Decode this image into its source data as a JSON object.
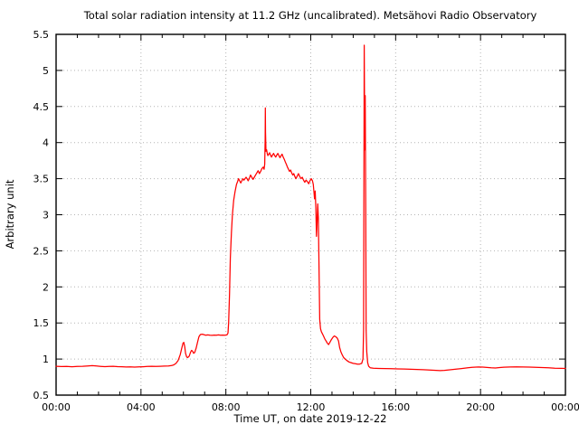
{
  "chart_data": {
    "type": "line",
    "title": "Total solar radiation intensity at 11.2 GHz (uncalibrated). Metsähovi Radio Observatory",
    "xlabel": "Time UT, on date 2019-12-22",
    "ylabel": "Arbitrary unit",
    "xlim": [
      0,
      24
    ],
    "ylim": [
      0.5,
      5.5
    ],
    "grid": "dotted at major ticks",
    "legend": "none",
    "background": "#ffffff",
    "line_color": "#ff0000",
    "x_ticks": [
      {
        "pos": 0,
        "label": "00:00"
      },
      {
        "pos": 4,
        "label": "04:00"
      },
      {
        "pos": 8,
        "label": "08:00"
      },
      {
        "pos": 12,
        "label": "12:00"
      },
      {
        "pos": 16,
        "label": "16:00"
      },
      {
        "pos": 20,
        "label": "20:00"
      },
      {
        "pos": 24,
        "label": "00:00"
      }
    ],
    "x_minor_step": 1,
    "y_ticks": [
      {
        "pos": 0.5,
        "label": "0.5"
      },
      {
        "pos": 1,
        "label": "1"
      },
      {
        "pos": 1.5,
        "label": "1.5"
      },
      {
        "pos": 2,
        "label": "2"
      },
      {
        "pos": 2.5,
        "label": "2.5"
      },
      {
        "pos": 3,
        "label": "3"
      },
      {
        "pos": 3.5,
        "label": "3.5"
      },
      {
        "pos": 4,
        "label": "4"
      },
      {
        "pos": 4.5,
        "label": "4.5"
      },
      {
        "pos": 5,
        "label": "5"
      },
      {
        "pos": 5.5,
        "label": "5.5"
      }
    ],
    "series": [
      {
        "name": "total solar radiation intensity (arbitrary units) vs time UT",
        "points": [
          [
            0.0,
            0.9
          ],
          [
            0.25,
            0.896
          ],
          [
            0.5,
            0.898
          ],
          [
            0.75,
            0.893
          ],
          [
            1.0,
            0.897
          ],
          [
            1.25,
            0.9
          ],
          [
            1.5,
            0.905
          ],
          [
            1.7,
            0.908
          ],
          [
            1.9,
            0.903
          ],
          [
            2.1,
            0.898
          ],
          [
            2.3,
            0.895
          ],
          [
            2.5,
            0.898
          ],
          [
            2.7,
            0.9
          ],
          [
            2.9,
            0.895
          ],
          [
            3.1,
            0.893
          ],
          [
            3.3,
            0.89
          ],
          [
            3.5,
            0.892
          ],
          [
            3.7,
            0.889
          ],
          [
            3.9,
            0.891
          ],
          [
            4.1,
            0.893
          ],
          [
            4.3,
            0.897
          ],
          [
            4.5,
            0.9
          ],
          [
            4.7,
            0.898
          ],
          [
            4.9,
            0.9
          ],
          [
            5.1,
            0.902
          ],
          [
            5.3,
            0.905
          ],
          [
            5.45,
            0.91
          ],
          [
            5.55,
            0.92
          ],
          [
            5.65,
            0.94
          ],
          [
            5.75,
            0.98
          ],
          [
            5.85,
            1.06
          ],
          [
            5.92,
            1.15
          ],
          [
            5.98,
            1.22
          ],
          [
            6.02,
            1.23
          ],
          [
            6.06,
            1.17
          ],
          [
            6.1,
            1.08
          ],
          [
            6.15,
            1.03
          ],
          [
            6.2,
            1.02
          ],
          [
            6.27,
            1.04
          ],
          [
            6.33,
            1.09
          ],
          [
            6.38,
            1.12
          ],
          [
            6.43,
            1.11
          ],
          [
            6.48,
            1.08
          ],
          [
            6.53,
            1.09
          ],
          [
            6.6,
            1.15
          ],
          [
            6.67,
            1.24
          ],
          [
            6.73,
            1.31
          ],
          [
            6.8,
            1.34
          ],
          [
            6.88,
            1.345
          ],
          [
            6.95,
            1.34
          ],
          [
            7.05,
            1.33
          ],
          [
            7.15,
            1.335
          ],
          [
            7.25,
            1.33
          ],
          [
            7.35,
            1.328
          ],
          [
            7.45,
            1.332
          ],
          [
            7.55,
            1.33
          ],
          [
            7.65,
            1.335
          ],
          [
            7.75,
            1.33
          ],
          [
            7.85,
            1.332
          ],
          [
            7.95,
            1.33
          ],
          [
            8.05,
            1.335
          ],
          [
            8.1,
            1.36
          ],
          [
            8.13,
            1.5
          ],
          [
            8.17,
            1.9
          ],
          [
            8.21,
            2.4
          ],
          [
            8.26,
            2.75
          ],
          [
            8.31,
            3.0
          ],
          [
            8.37,
            3.2
          ],
          [
            8.43,
            3.32
          ],
          [
            8.5,
            3.42
          ],
          [
            8.55,
            3.46
          ],
          [
            8.6,
            3.5
          ],
          [
            8.65,
            3.47
          ],
          [
            8.7,
            3.44
          ],
          [
            8.75,
            3.47
          ],
          [
            8.8,
            3.5
          ],
          [
            8.85,
            3.48
          ],
          [
            8.9,
            3.5
          ],
          [
            8.95,
            3.52
          ],
          [
            9.0,
            3.5
          ],
          [
            9.05,
            3.47
          ],
          [
            9.1,
            3.5
          ],
          [
            9.16,
            3.55
          ],
          [
            9.22,
            3.52
          ],
          [
            9.28,
            3.49
          ],
          [
            9.34,
            3.52
          ],
          [
            9.4,
            3.55
          ],
          [
            9.46,
            3.58
          ],
          [
            9.52,
            3.61
          ],
          [
            9.58,
            3.57
          ],
          [
            9.64,
            3.6
          ],
          [
            9.7,
            3.64
          ],
          [
            9.76,
            3.66
          ],
          [
            9.8,
            3.63
          ],
          [
            9.83,
            3.7
          ],
          [
            9.85,
            4.05
          ],
          [
            9.86,
            4.48
          ],
          [
            9.87,
            4.15
          ],
          [
            9.89,
            3.88
          ],
          [
            9.92,
            3.9
          ],
          [
            9.95,
            3.85
          ],
          [
            9.98,
            3.82
          ],
          [
            10.02,
            3.84
          ],
          [
            10.06,
            3.86
          ],
          [
            10.1,
            3.83
          ],
          [
            10.15,
            3.8
          ],
          [
            10.2,
            3.83
          ],
          [
            10.25,
            3.85
          ],
          [
            10.3,
            3.82
          ],
          [
            10.35,
            3.8
          ],
          [
            10.4,
            3.83
          ],
          [
            10.45,
            3.85
          ],
          [
            10.5,
            3.82
          ],
          [
            10.55,
            3.79
          ],
          [
            10.6,
            3.82
          ],
          [
            10.65,
            3.84
          ],
          [
            10.7,
            3.8
          ],
          [
            10.75,
            3.77
          ],
          [
            10.8,
            3.73
          ],
          [
            10.85,
            3.7
          ],
          [
            10.9,
            3.66
          ],
          [
            10.95,
            3.63
          ],
          [
            11.0,
            3.6
          ],
          [
            11.05,
            3.62
          ],
          [
            11.1,
            3.58
          ],
          [
            11.15,
            3.55
          ],
          [
            11.2,
            3.57
          ],
          [
            11.25,
            3.53
          ],
          [
            11.3,
            3.5
          ],
          [
            11.35,
            3.53
          ],
          [
            11.42,
            3.57
          ],
          [
            11.48,
            3.53
          ],
          [
            11.54,
            3.5
          ],
          [
            11.6,
            3.52
          ],
          [
            11.66,
            3.48
          ],
          [
            11.72,
            3.45
          ],
          [
            11.78,
            3.48
          ],
          [
            11.84,
            3.46
          ],
          [
            11.9,
            3.43
          ],
          [
            11.96,
            3.47
          ],
          [
            12.02,
            3.5
          ],
          [
            12.08,
            3.47
          ],
          [
            12.12,
            3.42
          ],
          [
            12.15,
            3.32
          ],
          [
            12.18,
            3.22
          ],
          [
            12.21,
            3.33
          ],
          [
            12.24,
            3.1
          ],
          [
            12.27,
            2.7
          ],
          [
            12.3,
            2.9
          ],
          [
            12.33,
            3.15
          ],
          [
            12.36,
            2.95
          ],
          [
            12.39,
            2.3
          ],
          [
            12.42,
            1.55
          ],
          [
            12.46,
            1.42
          ],
          [
            12.5,
            1.38
          ],
          [
            12.55,
            1.35
          ],
          [
            12.6,
            1.32
          ],
          [
            12.66,
            1.28
          ],
          [
            12.72,
            1.25
          ],
          [
            12.78,
            1.22
          ],
          [
            12.84,
            1.2
          ],
          [
            12.9,
            1.23
          ],
          [
            12.97,
            1.27
          ],
          [
            13.04,
            1.3
          ],
          [
            13.11,
            1.32
          ],
          [
            13.18,
            1.31
          ],
          [
            13.25,
            1.29
          ],
          [
            13.31,
            1.25
          ],
          [
            13.36,
            1.16
          ],
          [
            13.42,
            1.1
          ],
          [
            13.48,
            1.06
          ],
          [
            13.55,
            1.02
          ],
          [
            13.62,
            1.0
          ],
          [
            13.7,
            0.98
          ],
          [
            13.8,
            0.96
          ],
          [
            13.9,
            0.95
          ],
          [
            14.0,
            0.94
          ],
          [
            14.1,
            0.935
          ],
          [
            14.2,
            0.93
          ],
          [
            14.3,
            0.93
          ],
          [
            14.4,
            0.94
          ],
          [
            14.46,
            1.0
          ],
          [
            14.49,
            1.4
          ],
          [
            14.52,
            5.35
          ],
          [
            14.545,
            3.9
          ],
          [
            14.565,
            4.65
          ],
          [
            14.59,
            3.0
          ],
          [
            14.61,
            1.4
          ],
          [
            14.64,
            1.1
          ],
          [
            14.68,
            0.95
          ],
          [
            14.73,
            0.9
          ],
          [
            14.8,
            0.88
          ],
          [
            14.95,
            0.872
          ],
          [
            15.2,
            0.87
          ],
          [
            15.5,
            0.868
          ],
          [
            15.8,
            0.866
          ],
          [
            16.1,
            0.864
          ],
          [
            16.4,
            0.862
          ],
          [
            16.7,
            0.858
          ],
          [
            17.0,
            0.856
          ],
          [
            17.3,
            0.852
          ],
          [
            17.6,
            0.848
          ],
          [
            17.9,
            0.843
          ],
          [
            18.1,
            0.84
          ],
          [
            18.3,
            0.843
          ],
          [
            18.5,
            0.85
          ],
          [
            18.8,
            0.858
          ],
          [
            19.1,
            0.868
          ],
          [
            19.4,
            0.878
          ],
          [
            19.6,
            0.886
          ],
          [
            19.9,
            0.89
          ],
          [
            20.1,
            0.888
          ],
          [
            20.3,
            0.884
          ],
          [
            20.5,
            0.878
          ],
          [
            20.7,
            0.876
          ],
          [
            20.9,
            0.882
          ],
          [
            21.1,
            0.887
          ],
          [
            21.4,
            0.89
          ],
          [
            21.7,
            0.892
          ],
          [
            22.0,
            0.89
          ],
          [
            22.3,
            0.888
          ],
          [
            22.6,
            0.885
          ],
          [
            22.9,
            0.882
          ],
          [
            23.2,
            0.878
          ],
          [
            23.5,
            0.874
          ],
          [
            23.8,
            0.871
          ],
          [
            24.0,
            0.87
          ]
        ]
      }
    ]
  }
}
